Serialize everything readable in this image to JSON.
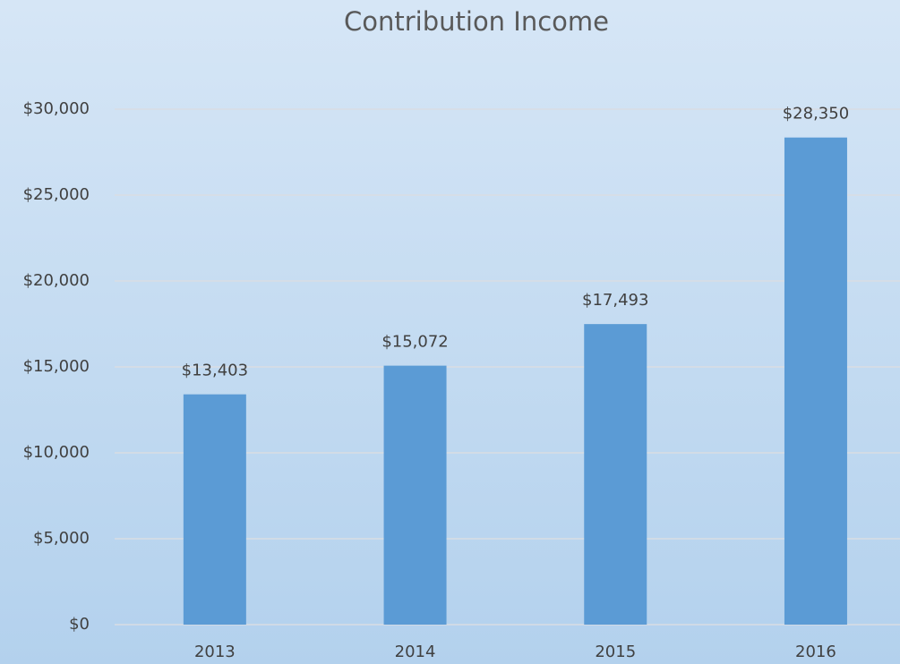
{
  "chart_data": {
    "type": "bar",
    "title": "Contribution Income",
    "categories": [
      "2013",
      "2014",
      "2015",
      "2016"
    ],
    "values": [
      13403,
      15072,
      17493,
      28350
    ],
    "value_labels": [
      "$13,403",
      "$15,072",
      "$17,493",
      "$28,350"
    ],
    "color": "#5b9bd5",
    "ylim": [
      0,
      30000
    ],
    "yticks": [
      {
        "value": 0,
        "label": "$0"
      },
      {
        "value": 5000,
        "label": "$5,000"
      },
      {
        "value": 10000,
        "label": "$10,000"
      },
      {
        "value": 15000,
        "label": "$15,000"
      },
      {
        "value": 20000,
        "label": "$20,000"
      },
      {
        "value": 25000,
        "label": "$25,000"
      },
      {
        "value": 30000,
        "label": "$30,000"
      }
    ],
    "grid": true
  }
}
